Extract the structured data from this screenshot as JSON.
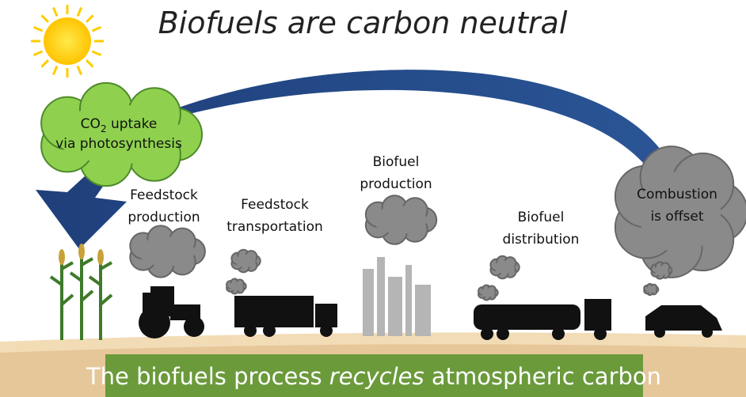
{
  "title": "Biofuels are carbon neutral",
  "uptake": {
    "line1": [
      "CO",
      "2",
      " uptake"
    ],
    "line2": "via photosynthesis"
  },
  "stages": [
    {
      "lines": [
        "Feedstock",
        "production"
      ]
    },
    {
      "lines": [
        "Feedstock",
        "transportation"
      ]
    },
    {
      "lines": [
        "Biofuel",
        "production"
      ]
    },
    {
      "lines": [
        "Biofuel",
        "distribution"
      ]
    },
    {
      "lines": [
        "Combustion",
        "is offset"
      ]
    }
  ],
  "banner": [
    "The biofuels process ",
    "recycles",
    " atmospheric carbon"
  ]
}
